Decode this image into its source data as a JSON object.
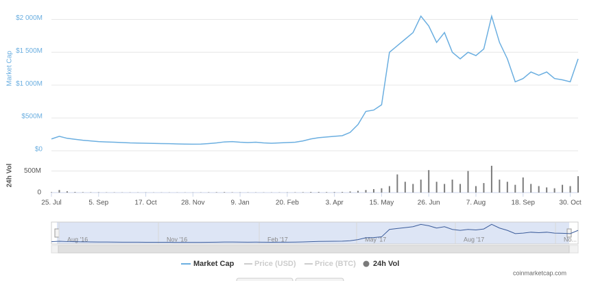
{
  "chart_data": {
    "type": "line",
    "categories": [
      "25. Jul",
      null,
      null,
      null,
      null,
      null,
      "5. Sep",
      null,
      null,
      null,
      null,
      null,
      "17. Oct",
      null,
      null,
      null,
      null,
      null,
      "28. Nov",
      null,
      null,
      null,
      null,
      null,
      "9. Jan",
      null,
      null,
      null,
      null,
      null,
      "20. Feb",
      null,
      null,
      null,
      null,
      null,
      "3. Apr",
      null,
      null,
      null,
      null,
      null,
      "15. May",
      null,
      null,
      null,
      null,
      null,
      "26. Jun",
      null,
      null,
      null,
      null,
      null,
      "7. Aug",
      null,
      null,
      null,
      null,
      null,
      "18. Sep",
      null,
      null,
      null,
      null,
      null,
      "30. Oct",
      null
    ],
    "y_label": "Market Cap",
    "y2_label": "24h Vol",
    "series": [
      {
        "name": "Market Cap",
        "color": "#6aaee0",
        "values": [
          180,
          220,
          190,
          175,
          160,
          150,
          140,
          135,
          130,
          125,
          120,
          118,
          115,
          112,
          110,
          108,
          105,
          102,
          100,
          102,
          110,
          120,
          135,
          140,
          130,
          125,
          130,
          120,
          115,
          120,
          125,
          130,
          150,
          180,
          200,
          210,
          220,
          230,
          280,
          400,
          600,
          620,
          700,
          1500,
          1600,
          1700,
          1800,
          2050,
          1900,
          1650,
          1800,
          1500,
          1400,
          1500,
          1450,
          1550,
          2050,
          1650,
          1400,
          1050,
          1100,
          1200,
          1150,
          1200,
          1100,
          1080,
          1050,
          1400
        ]
      },
      {
        "name": "24h Vol",
        "color": "#7a7a7a",
        "axis": "y2",
        "values": [
          10,
          60,
          30,
          15,
          10,
          8,
          8,
          6,
          6,
          5,
          5,
          5,
          5,
          4,
          4,
          4,
          4,
          4,
          4,
          5,
          8,
          10,
          12,
          8,
          6,
          6,
          5,
          5,
          5,
          5,
          6,
          8,
          10,
          15,
          15,
          12,
          12,
          15,
          25,
          40,
          60,
          80,
          100,
          150,
          420,
          250,
          200,
          300,
          520,
          250,
          200,
          300,
          200,
          500,
          150,
          220,
          620,
          300,
          250,
          180,
          350,
          200,
          150,
          120,
          100,
          180,
          150,
          380
        ]
      }
    ],
    "legend_hidden": [
      "Price (USD)",
      "Price (BTC)"
    ],
    "ylim": [
      0,
      2150
    ],
    "yticks": [
      {
        "value": 0,
        "label": "$0"
      },
      {
        "value": 500,
        "label": "$500M"
      },
      {
        "value": 1000,
        "label": "$1 000M"
      },
      {
        "value": 1500,
        "label": "$1 500M"
      },
      {
        "value": 2000,
        "label": "$2 000M"
      }
    ],
    "y2lim": [
      0,
      650
    ],
    "y2ticks": [
      0,
      {
        "value": 500,
        "label": "500M"
      }
    ],
    "navigator_labels": [
      "Aug '16",
      "Nov '16",
      "Feb '17",
      "May '17",
      "Aug '17",
      "No..."
    ],
    "grid": true,
    "credit": "coinmarketcap.com"
  }
}
